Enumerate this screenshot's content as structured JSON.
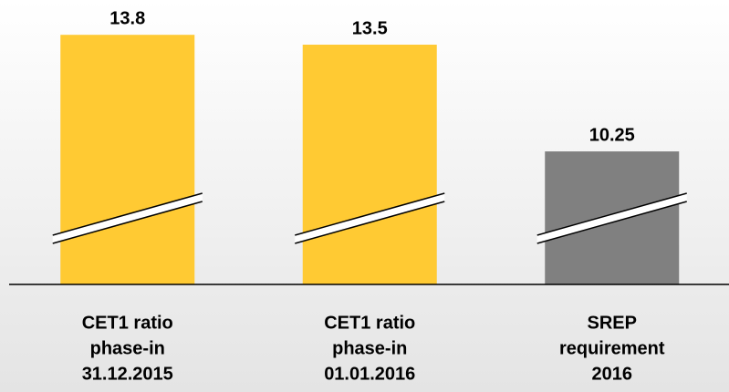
{
  "chart_data": {
    "type": "bar",
    "categories": [
      [
        "CET1 ratio",
        "phase-in",
        "31.12.2015"
      ],
      [
        "CET1 ratio",
        "phase-in",
        "01.01.2016"
      ],
      [
        "SREP",
        "requirement",
        "2016"
      ]
    ],
    "values": [
      13.8,
      13.5,
      10.25
    ],
    "colors": [
      "#ffca33",
      "#ffca33",
      "#808080"
    ],
    "ylim": [
      6.2,
      14.0
    ],
    "axis_break": true
  }
}
